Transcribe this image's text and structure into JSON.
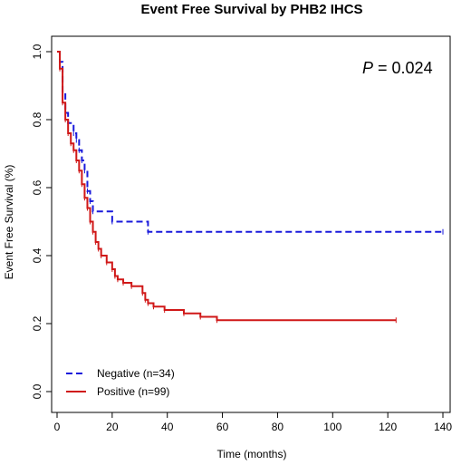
{
  "chart_data": {
    "type": "line",
    "title": "Event Free Survival by PHB2 IHCS",
    "xlabel": "Time (months)",
    "ylabel": "Event Free Survival (%)",
    "xlim": [
      0,
      140
    ],
    "ylim": [
      0,
      1
    ],
    "x_ticks": [
      "0",
      "20",
      "40",
      "60",
      "80",
      "100",
      "120",
      "140"
    ],
    "y_ticks": [
      "0.0",
      "0.2",
      "0.4",
      "0.6",
      "0.8",
      "1.0"
    ],
    "annotation": {
      "letter": "P",
      "rest": " = 0.024"
    },
    "legend_position": "bottom-left",
    "series": [
      {
        "name": "Negative (n=34)",
        "color": "#1a1adb",
        "dash": "dashed",
        "steps": [
          [
            0,
            1.0
          ],
          [
            1,
            0.97
          ],
          [
            2,
            0.88
          ],
          [
            3,
            0.82
          ],
          [
            4,
            0.79
          ],
          [
            6,
            0.76
          ],
          [
            7,
            0.74
          ],
          [
            8,
            0.71
          ],
          [
            9,
            0.68
          ],
          [
            10,
            0.65
          ],
          [
            11,
            0.59
          ],
          [
            12,
            0.56
          ],
          [
            13,
            0.53
          ],
          [
            20,
            0.5
          ],
          [
            33,
            0.47
          ],
          [
            140,
            0.47
          ]
        ]
      },
      {
        "name": "Positive (n=99)",
        "color": "#d01818",
        "dash": "solid",
        "steps": [
          [
            0,
            1.0
          ],
          [
            1,
            0.95
          ],
          [
            2,
            0.85
          ],
          [
            3,
            0.8
          ],
          [
            4,
            0.76
          ],
          [
            5,
            0.73
          ],
          [
            6,
            0.71
          ],
          [
            7,
            0.68
          ],
          [
            8,
            0.65
          ],
          [
            9,
            0.61
          ],
          [
            10,
            0.57
          ],
          [
            11,
            0.54
          ],
          [
            12,
            0.5
          ],
          [
            13,
            0.47
          ],
          [
            14,
            0.44
          ],
          [
            15,
            0.42
          ],
          [
            16,
            0.4
          ],
          [
            18,
            0.38
          ],
          [
            20,
            0.36
          ],
          [
            21,
            0.34
          ],
          [
            22,
            0.33
          ],
          [
            24,
            0.32
          ],
          [
            27,
            0.31
          ],
          [
            31,
            0.29
          ],
          [
            32,
            0.27
          ],
          [
            33,
            0.26
          ],
          [
            35,
            0.25
          ],
          [
            39,
            0.24
          ],
          [
            46,
            0.23
          ],
          [
            52,
            0.22
          ],
          [
            58,
            0.21
          ],
          [
            123,
            0.21
          ]
        ]
      }
    ]
  }
}
